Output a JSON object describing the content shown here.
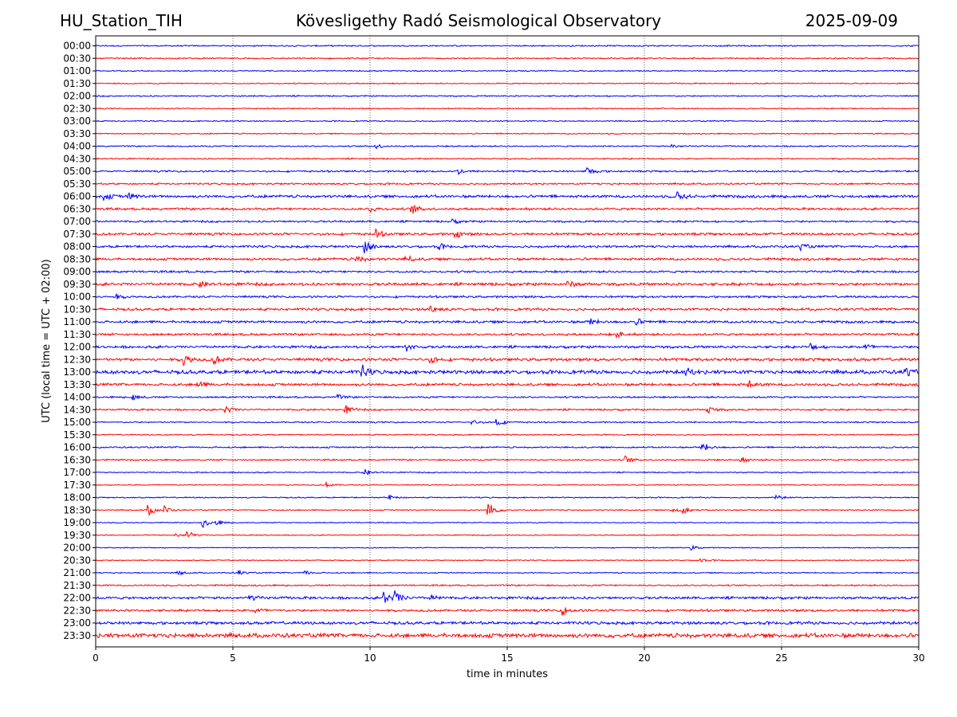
{
  "header": {
    "station": "HU_Station_TIH",
    "title": "Kövesligethy Radó Seismological Observatory",
    "date": "2025-09-09"
  },
  "chart_data": {
    "type": "line",
    "chart_kind": "helicorder",
    "xlabel": "time in minutes",
    "ylabel": "UTC (local time = UTC + 02:00)",
    "xlim": [
      0,
      30
    ],
    "xticks": [
      "0",
      "5",
      "10",
      "15",
      "20",
      "25",
      "30"
    ],
    "grid": "vertical dotted lines at each x tick",
    "colors": {
      "even_rows": "#0000ff",
      "odd_rows": "#ff0000"
    },
    "rows": [
      {
        "label": "00:00",
        "noise": 0.7,
        "events": []
      },
      {
        "label": "00:30",
        "noise": 0.7,
        "events": []
      },
      {
        "label": "01:00",
        "noise": 0.6,
        "events": []
      },
      {
        "label": "01:30",
        "noise": 0.6,
        "events": []
      },
      {
        "label": "02:00",
        "noise": 0.7,
        "events": []
      },
      {
        "label": "02:30",
        "noise": 0.6,
        "events": []
      },
      {
        "label": "03:00",
        "noise": 0.6,
        "events": []
      },
      {
        "label": "03:30",
        "noise": 0.6,
        "events": []
      },
      {
        "label": "04:00",
        "noise": 0.7,
        "events": [
          {
            "t": 10.2,
            "a": 3
          },
          {
            "t": 21.0,
            "a": 3
          }
        ]
      },
      {
        "label": "04:30",
        "noise": 0.7,
        "events": []
      },
      {
        "label": "05:00",
        "noise": 0.9,
        "events": [
          {
            "t": 13.2,
            "a": 4
          },
          {
            "t": 17.9,
            "a": 6
          }
        ]
      },
      {
        "label": "05:30",
        "noise": 0.9,
        "events": []
      },
      {
        "label": "06:00",
        "noise": 1.4,
        "events": [
          {
            "t": 0.3,
            "a": 5
          },
          {
            "t": 1.2,
            "a": 4
          },
          {
            "t": 21.2,
            "a": 6
          }
        ]
      },
      {
        "label": "06:30",
        "noise": 1.2,
        "events": [
          {
            "t": 11.5,
            "a": 7
          },
          {
            "t": 10.0,
            "a": 4
          }
        ]
      },
      {
        "label": "07:00",
        "noise": 1.0,
        "events": [
          {
            "t": 13.0,
            "a": 3
          }
        ]
      },
      {
        "label": "07:30",
        "noise": 1.3,
        "events": [
          {
            "t": 10.2,
            "a": 5
          },
          {
            "t": 13.1,
            "a": 5
          }
        ]
      },
      {
        "label": "08:00",
        "noise": 1.2,
        "events": [
          {
            "t": 9.8,
            "a": 9
          },
          {
            "t": 12.5,
            "a": 4
          },
          {
            "t": 25.7,
            "a": 4
          }
        ]
      },
      {
        "label": "08:30",
        "noise": 1.3,
        "events": [
          {
            "t": 9.5,
            "a": 5
          },
          {
            "t": 11.3,
            "a": 5
          }
        ]
      },
      {
        "label": "09:00",
        "noise": 1.1,
        "events": []
      },
      {
        "label": "09:30",
        "noise": 1.5,
        "events": [
          {
            "t": 3.8,
            "a": 4
          },
          {
            "t": 17.2,
            "a": 4
          }
        ]
      },
      {
        "label": "10:00",
        "noise": 1.1,
        "events": [
          {
            "t": 0.7,
            "a": 3
          }
        ]
      },
      {
        "label": "10:30",
        "noise": 1.3,
        "events": [
          {
            "t": 12.2,
            "a": 5
          }
        ]
      },
      {
        "label": "11:00",
        "noise": 1.3,
        "events": [
          {
            "t": 18.0,
            "a": 4
          },
          {
            "t": 19.7,
            "a": 4
          }
        ]
      },
      {
        "label": "11:30",
        "noise": 1.2,
        "events": [
          {
            "t": 19.0,
            "a": 4
          }
        ]
      },
      {
        "label": "12:00",
        "noise": 1.3,
        "events": [
          {
            "t": 11.3,
            "a": 5
          },
          {
            "t": 26.0,
            "a": 5
          },
          {
            "t": 28.0,
            "a": 5
          }
        ]
      },
      {
        "label": "12:30",
        "noise": 1.5,
        "events": [
          {
            "t": 3.2,
            "a": 8
          },
          {
            "t": 4.3,
            "a": 6
          },
          {
            "t": 12.2,
            "a": 5
          }
        ]
      },
      {
        "label": "13:00",
        "noise": 1.9,
        "events": [
          {
            "t": 9.7,
            "a": 9
          },
          {
            "t": 21.5,
            "a": 5
          },
          {
            "t": 29.5,
            "a": 6
          }
        ]
      },
      {
        "label": "13:30",
        "noise": 1.4,
        "events": [
          {
            "t": 3.7,
            "a": 5
          },
          {
            "t": 23.8,
            "a": 5
          }
        ]
      },
      {
        "label": "14:00",
        "noise": 0.9,
        "events": [
          {
            "t": 1.3,
            "a": 5
          },
          {
            "t": 8.8,
            "a": 3
          }
        ]
      },
      {
        "label": "14:30",
        "noise": 0.9,
        "events": [
          {
            "t": 4.7,
            "a": 6
          },
          {
            "t": 9.1,
            "a": 6
          },
          {
            "t": 22.3,
            "a": 5
          }
        ]
      },
      {
        "label": "15:00",
        "noise": 0.7,
        "events": [
          {
            "t": 14.6,
            "a": 6
          },
          {
            "t": 13.7,
            "a": 3
          }
        ]
      },
      {
        "label": "15:30",
        "noise": 0.6,
        "events": []
      },
      {
        "label": "16:00",
        "noise": 0.8,
        "events": [
          {
            "t": 22.1,
            "a": 7
          }
        ]
      },
      {
        "label": "16:30",
        "noise": 0.8,
        "events": [
          {
            "t": 19.3,
            "a": 5
          },
          {
            "t": 23.5,
            "a": 4
          }
        ]
      },
      {
        "label": "17:00",
        "noise": 0.6,
        "events": [
          {
            "t": 9.8,
            "a": 4
          }
        ]
      },
      {
        "label": "17:30",
        "noise": 0.5,
        "events": [
          {
            "t": 8.4,
            "a": 3
          }
        ]
      },
      {
        "label": "18:00",
        "noise": 0.6,
        "events": [
          {
            "t": 10.7,
            "a": 3
          },
          {
            "t": 24.8,
            "a": 3
          }
        ]
      },
      {
        "label": "18:30",
        "noise": 0.6,
        "events": [
          {
            "t": 1.9,
            "a": 8
          },
          {
            "t": 2.5,
            "a": 5
          },
          {
            "t": 14.3,
            "a": 12
          },
          {
            "t": 21.0,
            "a": 5
          },
          {
            "t": 21.4,
            "a": 4
          }
        ]
      },
      {
        "label": "19:00",
        "noise": 0.5,
        "events": [
          {
            "t": 3.9,
            "a": 7
          },
          {
            "t": 4.4,
            "a": 3
          }
        ]
      },
      {
        "label": "19:30",
        "noise": 0.5,
        "events": [
          {
            "t": 3.3,
            "a": 7
          },
          {
            "t": 2.9,
            "a": 3
          }
        ]
      },
      {
        "label": "20:00",
        "noise": 0.5,
        "events": [
          {
            "t": 21.7,
            "a": 3
          }
        ]
      },
      {
        "label": "20:30",
        "noise": 0.5,
        "events": [
          {
            "t": 22.0,
            "a": 3
          }
        ]
      },
      {
        "label": "21:00",
        "noise": 0.6,
        "events": [
          {
            "t": 3.0,
            "a": 3
          },
          {
            "t": 5.2,
            "a": 3
          },
          {
            "t": 7.6,
            "a": 3
          }
        ]
      },
      {
        "label": "21:30",
        "noise": 0.8,
        "events": []
      },
      {
        "label": "22:00",
        "noise": 1.3,
        "events": [
          {
            "t": 5.6,
            "a": 4
          },
          {
            "t": 10.5,
            "a": 9
          },
          {
            "t": 10.9,
            "a": 8
          },
          {
            "t": 12.2,
            "a": 4
          }
        ]
      },
      {
        "label": "22:30",
        "noise": 1.2,
        "events": [
          {
            "t": 5.8,
            "a": 4
          },
          {
            "t": 17.0,
            "a": 6
          }
        ]
      },
      {
        "label": "23:00",
        "noise": 1.5,
        "events": []
      },
      {
        "label": "23:30",
        "noise": 2.2,
        "events": []
      }
    ]
  }
}
